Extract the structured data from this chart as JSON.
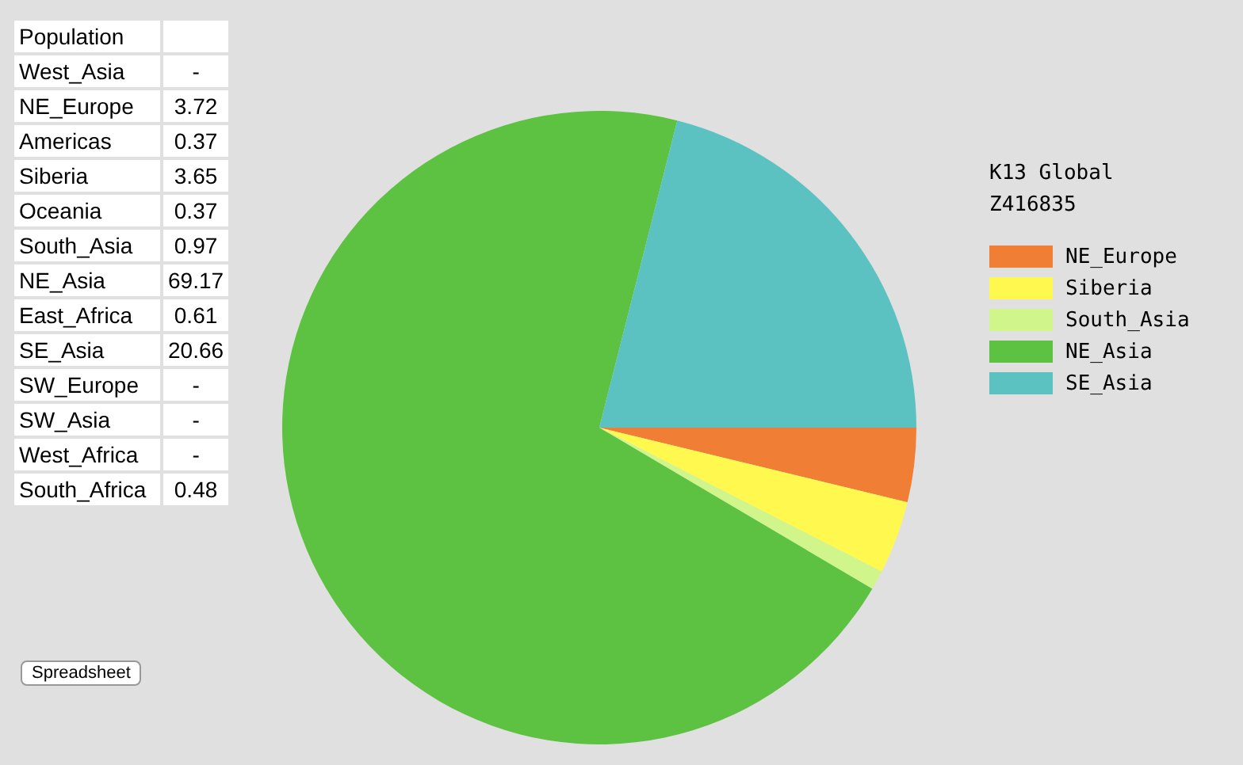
{
  "chart_data": [
    {
      "type": "other",
      "title": "Population",
      "categories": [
        "West_Asia",
        "NE_Europe",
        "Americas",
        "Siberia",
        "Oceania",
        "South_Asia",
        "NE_Asia",
        "East_Africa",
        "SE_Asia",
        "SW_Europe",
        "SW_Asia",
        "West_Africa",
        "South_Africa"
      ],
      "value_labels": [
        "-",
        "3.72",
        "0.37",
        "3.65",
        "0.37",
        "0.97",
        "69.17",
        "0.61",
        "20.66",
        "-",
        "-",
        "-",
        "0.48"
      ],
      "annotations": [
        "Spreadsheet"
      ]
    },
    {
      "type": "pie",
      "legend_title": "K13 Global\nZ416835",
      "legend": "right",
      "categories": [
        "NE_Europe",
        "Siberia",
        "South_Asia",
        "NE_Asia",
        "SE_Asia"
      ],
      "values": [
        3.72,
        3.65,
        0.97,
        69.17,
        20.66
      ],
      "colors": [
        "#f07f35",
        "#fff94f",
        "#d0f58a",
        "#5dc141",
        "#5bc1c1"
      ]
    }
  ]
}
